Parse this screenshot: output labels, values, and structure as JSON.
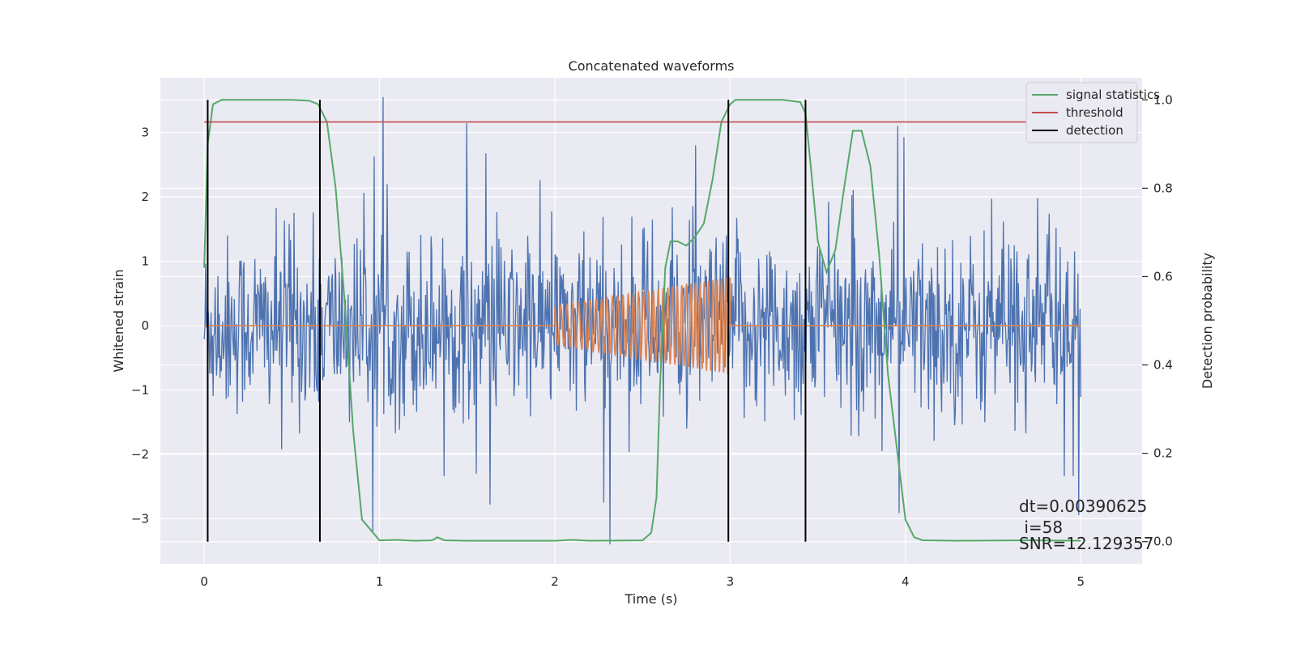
{
  "chart_data": {
    "type": "line",
    "title": "Concatenated waveforms",
    "xlabel": "Time (s)",
    "ylabel": "Whitened strain",
    "ylabel_right": "Detection probability",
    "xlim": [
      -0.25,
      5.35
    ],
    "ylim": [
      -3.7,
      3.85
    ],
    "ylim_right": [
      -0.05,
      1.05
    ],
    "x_ticks": [
      0,
      1,
      2,
      3,
      4,
      5
    ],
    "y_ticks": [
      -3,
      -2,
      -1,
      0,
      1,
      2,
      3
    ],
    "y_right_ticks": [
      0.0,
      0.2,
      0.4,
      0.6,
      0.8,
      1.0
    ],
    "grid": true,
    "legend_position": "top-right",
    "colors": {
      "noise": "#4c72b0",
      "template": "#dd8452",
      "signal_statistics": "#55a868",
      "threshold": "#c44e52",
      "detection": "#000000",
      "background": "#eaeaf2"
    },
    "series": [
      {
        "key": "noise",
        "x_range": [
          0,
          5
        ],
        "typical_amplitude": 0.6,
        "peak_range": [
          -3.4,
          3.55
        ]
      },
      {
        "key": "template",
        "chirp_start": 2.0,
        "chirp_end": 3.0,
        "amplitude_start": 0.3,
        "amplitude_end": 0.75
      },
      {
        "key": "signal_statistics",
        "name": "signal statistics",
        "axis": "right",
        "x": [
          0,
          0.02,
          0.05,
          0.1,
          0.3,
          0.5,
          0.6,
          0.65,
          0.7,
          0.75,
          0.8,
          0.85,
          0.9,
          1.0,
          1.1,
          1.2,
          1.3,
          1.33,
          1.37,
          1.5,
          2.0,
          2.1,
          2.2,
          2.5,
          2.55,
          2.58,
          2.6,
          2.63,
          2.66,
          2.7,
          2.75,
          2.8,
          2.85,
          2.9,
          2.95,
          3.0,
          3.03,
          3.1,
          3.3,
          3.4,
          3.43,
          3.46,
          3.5,
          3.55,
          3.6,
          3.65,
          3.7,
          3.75,
          3.8,
          3.85,
          3.9,
          4.0,
          4.05,
          4.1,
          4.3,
          4.7,
          5.0
        ],
        "y": [
          0.62,
          0.9,
          0.99,
          1.0,
          1.0,
          1.0,
          0.998,
          0.99,
          0.95,
          0.8,
          0.55,
          0.25,
          0.05,
          0.003,
          0.004,
          0.002,
          0.003,
          0.01,
          0.003,
          0.002,
          0.002,
          0.004,
          0.002,
          0.003,
          0.02,
          0.1,
          0.35,
          0.62,
          0.68,
          0.68,
          0.67,
          0.69,
          0.72,
          0.82,
          0.95,
          0.99,
          1.0,
          1.0,
          1.0,
          0.995,
          0.97,
          0.85,
          0.68,
          0.61,
          0.66,
          0.8,
          0.93,
          0.93,
          0.85,
          0.65,
          0.38,
          0.05,
          0.01,
          0.003,
          0.002,
          0.003,
          0.002
        ]
      },
      {
        "key": "threshold",
        "name": "threshold",
        "axis": "right",
        "x": [
          0,
          5.1
        ],
        "y": [
          0.95,
          0.95
        ]
      },
      {
        "key": "detection",
        "name": "detection",
        "axis": "right",
        "x": [
          0.02,
          0.66,
          2.99,
          3.43
        ],
        "y_range": [
          0.0,
          1.0
        ]
      }
    ],
    "annotations": {
      "dt": "dt=0.00390625",
      "i": " i=58",
      "snr": "SNR=12.129357"
    }
  }
}
